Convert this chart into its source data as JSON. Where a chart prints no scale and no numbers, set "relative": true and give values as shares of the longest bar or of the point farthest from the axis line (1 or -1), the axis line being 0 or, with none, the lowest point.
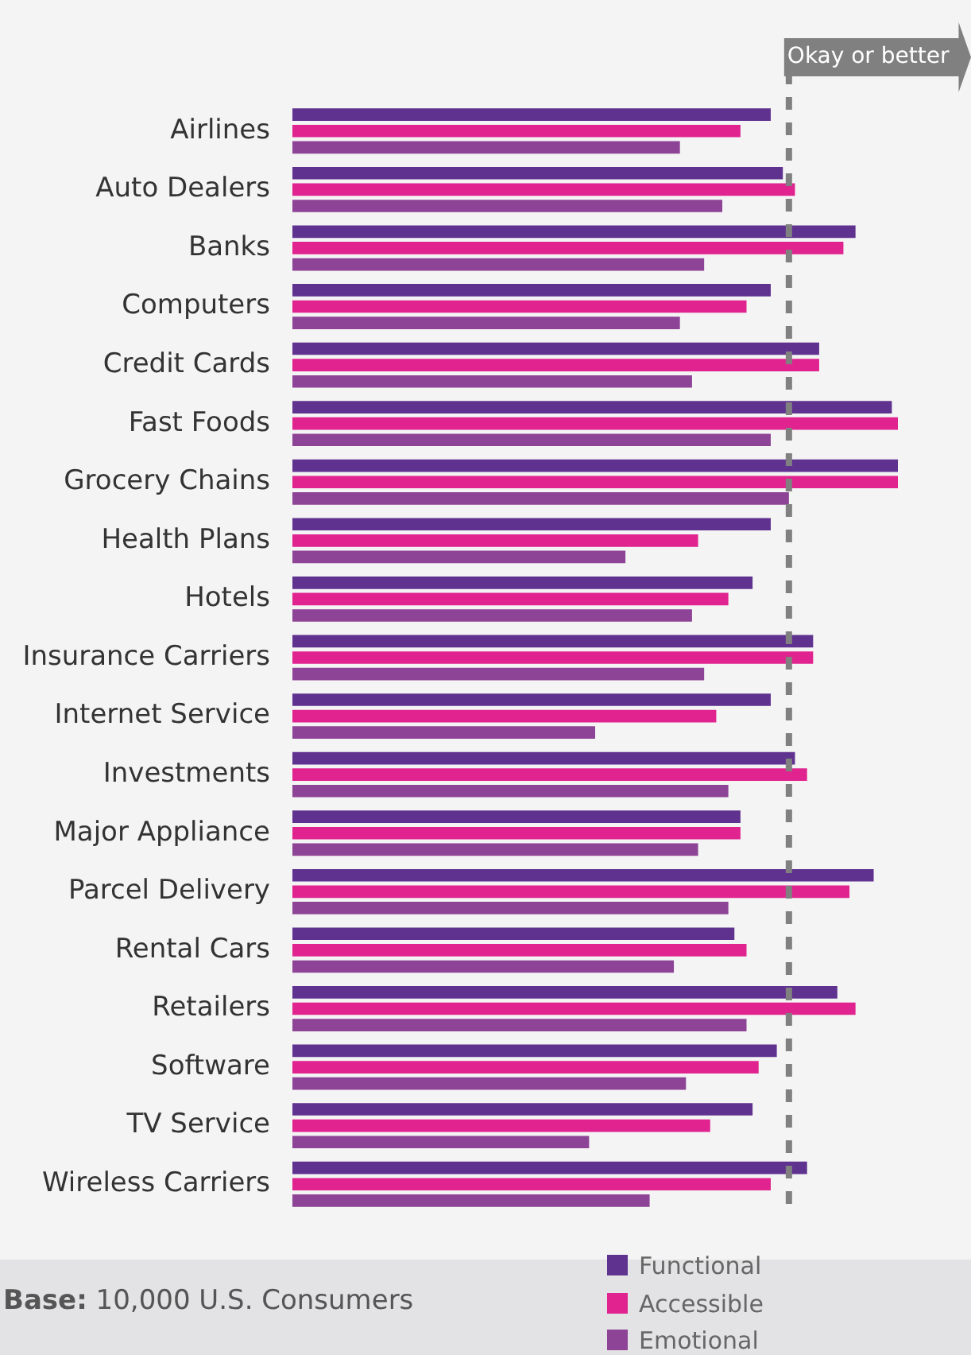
{
  "chart_data": {
    "type": "bar",
    "orientation": "horizontal",
    "relative": true,
    "legend": "bottom",
    "grid": false,
    "categories": [
      "Airlines",
      "Auto Dealers",
      "Banks",
      "Computers",
      "Credit Cards",
      "Fast Foods",
      "Grocery Chains",
      "Health Plans",
      "Hotels",
      "Insurance Carriers",
      "Internet Service",
      "Investments",
      "Major Appliance",
      "Parcel Delivery",
      "Rental Cars",
      "Retailers",
      "Software",
      "TV Service",
      "Wireless Carriers"
    ],
    "series": [
      {
        "name": "Functional",
        "color": "#5f3290",
        "values": [
          0.79,
          0.81,
          0.93,
          0.79,
          0.87,
          0.99,
          1.0,
          0.79,
          0.76,
          0.86,
          0.79,
          0.83,
          0.74,
          0.96,
          0.73,
          0.9,
          0.8,
          0.76,
          0.85
        ]
      },
      {
        "name": "Accessible",
        "color": "#e0238f",
        "values": [
          0.74,
          0.83,
          0.91,
          0.75,
          0.87,
          1.0,
          1.0,
          0.67,
          0.72,
          0.86,
          0.7,
          0.85,
          0.74,
          0.92,
          0.75,
          0.93,
          0.77,
          0.69,
          0.79
        ]
      },
      {
        "name": "Emotional",
        "color": "#8e4496",
        "values": [
          0.64,
          0.71,
          0.68,
          0.64,
          0.66,
          0.79,
          0.82,
          0.55,
          0.66,
          0.68,
          0.5,
          0.72,
          0.67,
          0.72,
          0.63,
          0.75,
          0.65,
          0.49,
          0.59
        ]
      }
    ],
    "ref_lines": [
      {
        "axis": "x",
        "value": 0.82,
        "label": "Okay or better",
        "color": "#808080",
        "line_style": "dashed"
      }
    ],
    "annotations": [
      "Base: 10,000 U.S. Consumers"
    ]
  }
}
